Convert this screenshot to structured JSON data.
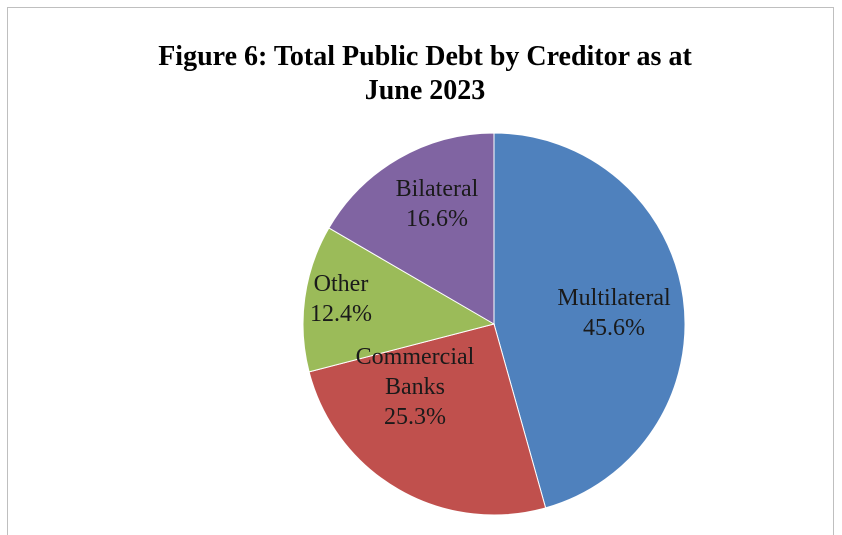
{
  "chart_data": {
    "type": "pie",
    "title": "Figure 6: Total Public Debt by Creditor as at June 2023",
    "title_lines": [
      "Figure 6: Total Public Debt by Creditor as at",
      "June 2023"
    ],
    "slices": [
      {
        "name": "Multilateral",
        "label_lines": [
          "Multilateral"
        ],
        "value": 45.6,
        "value_label": "45.6%",
        "color": "#4f81bd"
      },
      {
        "name": "Commercial Banks",
        "label_lines": [
          "Commercial",
          "Banks"
        ],
        "value": 25.3,
        "value_label": "25.3%",
        "color": "#c0504d"
      },
      {
        "name": "Other",
        "label_lines": [
          "Other"
        ],
        "value": 12.4,
        "value_label": "12.4%",
        "color": "#9bbb59"
      },
      {
        "name": "Bilateral",
        "label_lines": [
          "Bilateral"
        ],
        "value": 16.6,
        "value_label": "16.6%",
        "color": "#8064a2"
      }
    ],
    "start_angle_deg": 0,
    "direction": "clockwise",
    "legend": "none"
  }
}
